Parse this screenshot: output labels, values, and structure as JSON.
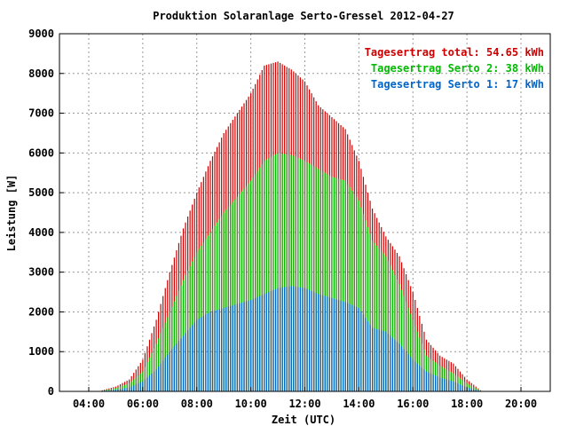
{
  "chart_data": {
    "type": "bar",
    "title": "Produktion Solaranlage Serto-Gressel 2012-04-27",
    "xlabel": "Zeit (UTC)",
    "ylabel": "Leistung [W]",
    "x_range": [
      "04:00",
      "20:00"
    ],
    "ylim": [
      0,
      9000
    ],
    "x_ticks": [
      "04:00",
      "06:00",
      "08:00",
      "10:00",
      "12:00",
      "14:00",
      "16:00",
      "18:00",
      "20:00"
    ],
    "y_ticks": [
      "0",
      "1000",
      "2000",
      "3000",
      "4000",
      "5000",
      "6000",
      "7000",
      "8000",
      "9000"
    ],
    "grid": true,
    "legend_position": "top-right",
    "legend": [
      {
        "label": "Tagesertrag total: 54.65 kWh",
        "color": "#cc0000"
      },
      {
        "label": "Tagesertrag Serto 2: 38 kWh",
        "color": "#00bb00"
      },
      {
        "label": "Tagesertrag Serto 1: 17 kWh",
        "color": "#0066cc"
      }
    ],
    "series": [
      {
        "name": "Tagesertrag Serto 1",
        "color": "#0066cc",
        "x": [
          "04:30",
          "05:00",
          "05:30",
          "06:00",
          "06:30",
          "07:00",
          "07:30",
          "08:00",
          "08:30",
          "09:00",
          "09:30",
          "10:00",
          "10:30",
          "11:00",
          "11:30",
          "12:00",
          "12:30",
          "13:00",
          "13:30",
          "14:00",
          "14:30",
          "15:00",
          "15:30",
          "16:00",
          "16:30",
          "17:00",
          "17:30",
          "18:00",
          "18:30"
        ],
        "values": [
          10,
          40,
          100,
          250,
          550,
          1000,
          1400,
          1800,
          2000,
          2100,
          2200,
          2300,
          2450,
          2600,
          2650,
          2600,
          2450,
          2350,
          2250,
          2100,
          1600,
          1500,
          1200,
          800,
          500,
          350,
          250,
          100,
          10
        ]
      },
      {
        "name": "Tagesertrag Serto 2",
        "color": "#00bb00",
        "x": [
          "04:30",
          "05:00",
          "05:30",
          "06:00",
          "06:30",
          "07:00",
          "07:30",
          "08:00",
          "08:30",
          "09:00",
          "09:30",
          "10:00",
          "10:30",
          "11:00",
          "11:30",
          "12:00",
          "12:30",
          "13:00",
          "13:30",
          "14:00",
          "14:30",
          "15:00",
          "15:30",
          "16:00",
          "16:30",
          "17:00",
          "17:30",
          "18:00",
          "18:30"
        ],
        "values": [
          20,
          80,
          200,
          500,
          1200,
          2000,
          2800,
          3500,
          4000,
          4500,
          4900,
          5300,
          5800,
          6000,
          5950,
          5800,
          5600,
          5400,
          5300,
          4800,
          3800,
          3400,
          2700,
          1800,
          900,
          650,
          450,
          200,
          20
        ]
      },
      {
        "name": "Tagesertrag total",
        "color": "#cc0000",
        "x": [
          "04:30",
          "05:00",
          "05:30",
          "06:00",
          "06:30",
          "07:00",
          "07:30",
          "08:00",
          "08:30",
          "09:00",
          "09:30",
          "10:00",
          "10:30",
          "11:00",
          "11:30",
          "12:00",
          "12:30",
          "13:00",
          "13:30",
          "14:00",
          "14:30",
          "15:00",
          "15:30",
          "16:00",
          "16:30",
          "17:00",
          "17:30",
          "18:00",
          "18:30"
        ],
        "values": [
          30,
          120,
          300,
          800,
          1800,
          3000,
          4100,
          5000,
          5800,
          6500,
          7000,
          7500,
          8200,
          8300,
          8100,
          7800,
          7200,
          6900,
          6600,
          5800,
          4600,
          3900,
          3400,
          2500,
          1300,
          900,
          700,
          300,
          30
        ]
      }
    ]
  }
}
